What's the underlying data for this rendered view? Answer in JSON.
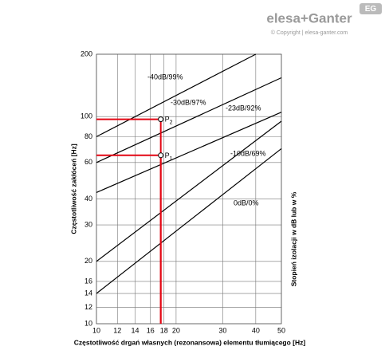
{
  "header": {
    "logo": "elesa+Ganter",
    "copyright": "© Copyright | elesa-ganter.com",
    "badge": "EG"
  },
  "chart_data": {
    "type": "line",
    "x_label": "Częstotliwość drgań własnych (rezonansowa) elementu tłumiącego [Hz]",
    "y_label": "Częstotliwość zakłóceń [Hz]",
    "y2_label": "Stopień izolacji w dB lub w %",
    "log_x": true,
    "log_y": true,
    "grid": true,
    "xlim": [
      10,
      50
    ],
    "xticks": [
      10,
      12,
      14,
      16,
      18,
      20,
      30,
      40,
      50
    ],
    "ylim": [
      10,
      200
    ],
    "yticks": [
      10,
      12,
      14,
      16,
      20,
      30,
      40,
      60,
      80,
      100,
      200
    ],
    "series": [
      {
        "name": "-40dB/99%",
        "color": "#000000",
        "x": [
          10,
          40
        ],
        "values": [
          80,
          200
        ]
      },
      {
        "name": "-30dB/97%",
        "color": "#000000",
        "x": [
          10,
          50
        ],
        "values": [
          60,
          154
        ]
      },
      {
        "name": "-23dB/92%",
        "color": "#000000",
        "x": [
          10,
          50
        ],
        "values": [
          43,
          105
        ]
      },
      {
        "name": "-10dB/69%",
        "color": "#000000",
        "x": [
          10,
          50
        ],
        "values": [
          20,
          95
        ]
      },
      {
        "name": "0dB/0%",
        "color": "#000000",
        "x": [
          10,
          50
        ],
        "values": [
          14,
          70
        ]
      }
    ],
    "points": [
      {
        "label": "P",
        "subscript": "1",
        "x": 17.5,
        "y": 65
      },
      {
        "label": "P",
        "subscript": "2",
        "x": 17.5,
        "y": 97
      }
    ],
    "point_color": "#e30613"
  }
}
